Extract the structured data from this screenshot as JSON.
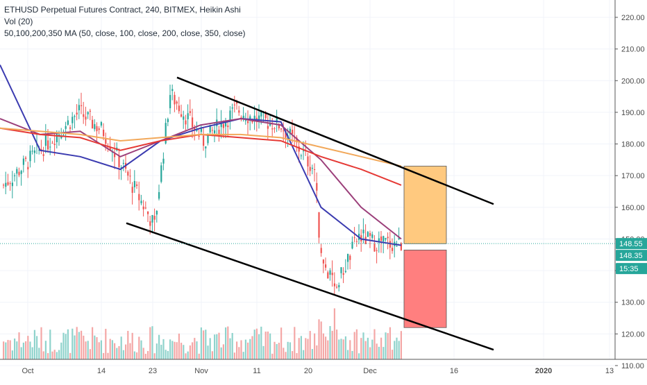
{
  "legend": {
    "title": "ETHUSD Perpetual Futures Contract, 240, BITMEX, Heikin Ashi",
    "volume": "Vol (20)",
    "ma": "50,100,200,350 MA (50, close, 100, close, 200, close, 350, close)"
  },
  "colors": {
    "bull": "#26a69a",
    "bear": "#ef5350",
    "vol_bull": "#8fd3cc",
    "vol_bear": "#f4a7a6",
    "ma50": "#3b3bb0",
    "ma100": "#9b3f7a",
    "ma200": "#e53935",
    "ma350": "#f2a85a",
    "channel": "#000000",
    "target_box": "#ffc97f",
    "stop_box": "#ff7f7f",
    "price_tag": "#26a69a"
  },
  "chart_data": {
    "type": "candlestick",
    "y_ticks": [
      "220.00",
      "210.00",
      "200.00",
      "190.00",
      "180.00",
      "170.00",
      "160.00",
      "150.00",
      "140.00",
      "130.00",
      "120.00",
      "110.00"
    ],
    "y_tick_values": [
      220,
      210,
      200,
      190,
      180,
      170,
      160,
      150,
      140,
      130,
      120,
      110
    ],
    "x_ticks": [
      "Oct",
      "14",
      "23",
      "Nov",
      "11",
      "20",
      "Dec",
      "16",
      "2020",
      "13"
    ],
    "last_price": "148.55",
    "price_label_2": "148.35",
    "countdown": "15:35",
    "ohlc_sample": [
      {
        "date": "Oct",
        "close": 167
      },
      {
        "date": "Oct 10",
        "close": 190
      },
      {
        "date": "14",
        "close": 184
      },
      {
        "date": "23",
        "close": 154
      },
      {
        "date": "Oct 26",
        "close": 196
      },
      {
        "date": "Nov",
        "close": 181
      },
      {
        "date": "Nov 7",
        "close": 191
      },
      {
        "date": "11",
        "close": 188
      },
      {
        "date": "Nov 16",
        "close": 186
      },
      {
        "date": "20",
        "close": 172
      },
      {
        "date": "Nov 22",
        "close": 144
      },
      {
        "date": "Nov 25",
        "close": 134
      },
      {
        "date": "Nov 29",
        "close": 151
      },
      {
        "date": "Dec",
        "close": 149
      },
      {
        "date": "Dec 6",
        "close": 148.5
      }
    ],
    "moving_averages": [
      {
        "name": "MA 50",
        "values": [
          205,
          178,
          176,
          172,
          181,
          185,
          188,
          187,
          160,
          150,
          148
        ]
      },
      {
        "name": "MA 100",
        "values": [
          188,
          183,
          184,
          176,
          181,
          186,
          188,
          186,
          175,
          160,
          150
        ]
      },
      {
        "name": "MA 200",
        "values": [
          185,
          183,
          182,
          178,
          181,
          183,
          182,
          181,
          176,
          172,
          167
        ]
      },
      {
        "name": "MA 350",
        "values": [
          185,
          184,
          183,
          181,
          182,
          183,
          183,
          182,
          179,
          176,
          173
        ]
      }
    ],
    "channel_upper": [
      {
        "date": "Oct 27",
        "price": 201
      },
      {
        "date": "Dec 20",
        "price": 161
      }
    ],
    "channel_lower": [
      {
        "date": "Oct 15",
        "price": 155
      },
      {
        "date": "Dec 20",
        "price": 115
      }
    ],
    "target_zone": {
      "from": 148.5,
      "to": 173
    },
    "stop_zone": {
      "from": 122,
      "to": 146.5
    }
  }
}
